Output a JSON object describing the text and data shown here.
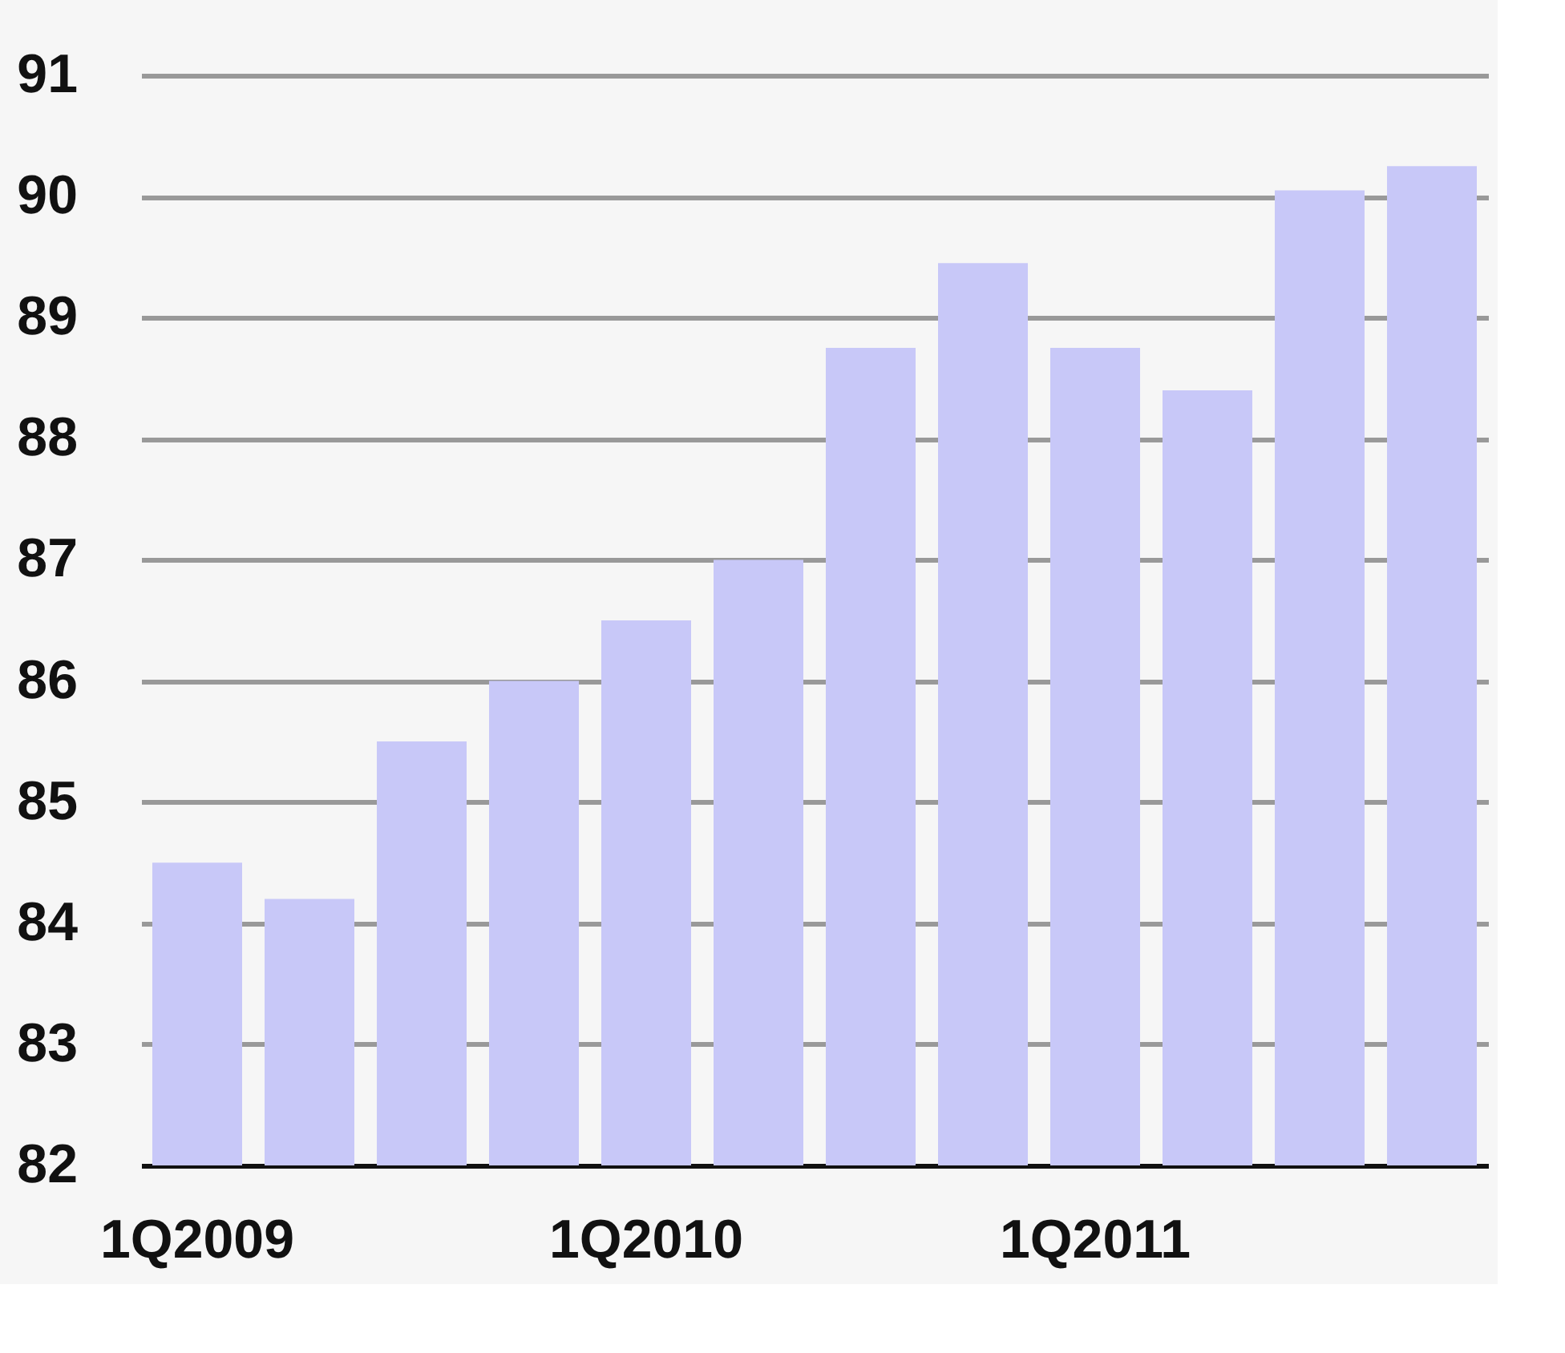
{
  "chart_data": {
    "type": "bar",
    "categories": [
      "1Q2009",
      null,
      null,
      null,
      "1Q2010",
      null,
      null,
      null,
      "1Q2011",
      null,
      null,
      null
    ],
    "values": [
      84.5,
      84.2,
      85.5,
      86.0,
      86.5,
      87.0,
      88.75,
      89.45,
      88.75,
      88.4,
      90.05,
      90.25
    ],
    "color": "#c8c8f8",
    "ylim": [
      82,
      91
    ],
    "yticks": [
      82,
      83,
      84,
      85,
      86,
      87,
      88,
      89,
      90,
      91
    ],
    "grid": "y"
  }
}
